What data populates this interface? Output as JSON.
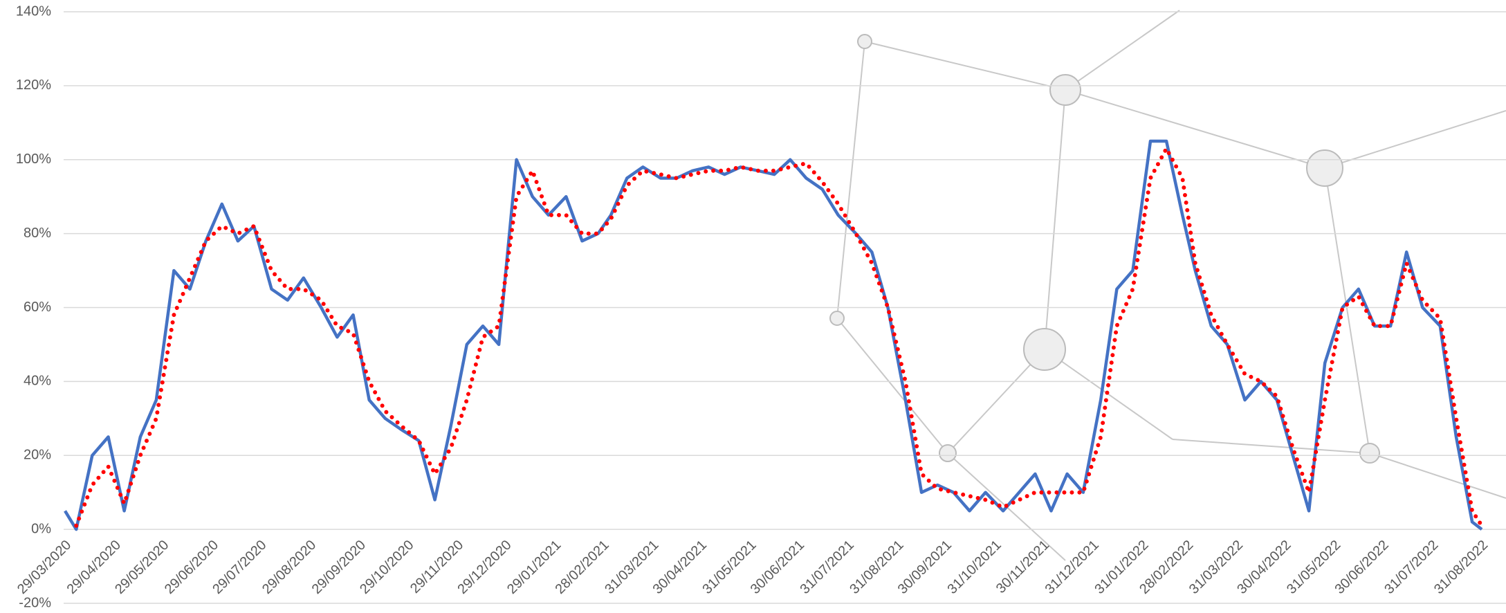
{
  "chart_data": {
    "type": "line",
    "x": [
      "29/03/2020",
      "05/04/2020",
      "15/04/2020",
      "25/04/2020",
      "05/05/2020",
      "15/05/2020",
      "25/05/2020",
      "05/06/2020",
      "15/06/2020",
      "25/06/2020",
      "05/07/2020",
      "15/07/2020",
      "25/07/2020",
      "05/08/2020",
      "15/08/2020",
      "25/08/2020",
      "05/09/2020",
      "15/09/2020",
      "25/09/2020",
      "05/10/2020",
      "15/10/2020",
      "25/10/2020",
      "05/11/2020",
      "15/11/2020",
      "25/11/2020",
      "05/12/2020",
      "15/12/2020",
      "25/12/2020",
      "05/01/2021",
      "15/01/2021",
      "25/01/2021",
      "05/02/2021",
      "15/02/2021",
      "25/02/2021",
      "05/03/2021",
      "15/03/2021",
      "25/03/2021",
      "05/04/2021",
      "15/04/2021",
      "25/04/2021",
      "05/05/2021",
      "15/05/2021",
      "25/05/2021",
      "05/06/2021",
      "15/06/2021",
      "25/06/2021",
      "05/07/2021",
      "15/07/2021",
      "25/07/2021",
      "05/08/2021",
      "15/08/2021",
      "25/08/2021",
      "05/09/2021",
      "15/09/2021",
      "25/09/2021",
      "05/10/2021",
      "15/10/2021",
      "25/10/2021",
      "05/11/2021",
      "15/11/2021",
      "25/11/2021",
      "05/12/2021",
      "15/12/2021",
      "25/12/2021",
      "05/01/2022",
      "15/01/2022",
      "25/01/2022",
      "05/02/2022",
      "15/02/2022",
      "25/02/2022",
      "05/03/2022",
      "15/03/2022",
      "25/03/2022",
      "05/04/2022",
      "15/04/2022",
      "25/04/2022",
      "05/05/2022",
      "15/05/2022",
      "25/05/2022",
      "05/06/2022",
      "15/06/2022",
      "25/06/2022",
      "05/07/2022",
      "15/07/2022",
      "25/07/2022",
      "05/08/2022",
      "15/08/2022",
      "25/08/2022",
      "31/08/2022"
    ],
    "series": [
      {
        "color": "#4472c4",
        "style": "solid",
        "values": [
          5,
          0,
          20,
          25,
          5,
          25,
          35,
          70,
          65,
          78,
          88,
          78,
          82,
          65,
          62,
          68,
          60,
          52,
          58,
          35,
          30,
          27,
          24,
          8,
          28,
          50,
          55,
          50,
          100,
          90,
          85,
          90,
          78,
          80,
          85,
          95,
          98,
          95,
          95,
          97,
          98,
          96,
          98,
          97,
          96,
          100,
          95,
          92,
          85,
          80,
          75,
          60,
          35,
          10,
          12,
          10,
          5,
          10,
          5,
          10,
          15,
          5,
          15,
          10,
          35,
          65,
          70,
          105,
          105,
          85,
          70,
          55,
          50,
          35,
          40,
          35,
          20,
          5,
          45,
          60,
          65,
          55,
          55,
          75,
          60,
          55,
          25,
          2,
          0
        ]
      },
      {
        "color": "#ff0000",
        "style": "dotted",
        "values": [
          null,
          1,
          12,
          17,
          7,
          20,
          30,
          58,
          68,
          78,
          82,
          80,
          82,
          70,
          65,
          65,
          62,
          55,
          53,
          40,
          32,
          28,
          24,
          15,
          22,
          35,
          52,
          55,
          90,
          97,
          85,
          85,
          80,
          80,
          84,
          93,
          97,
          96,
          95,
          96,
          97,
          97,
          98,
          97,
          97,
          98,
          99,
          94,
          88,
          80,
          72,
          60,
          40,
          15,
          11,
          10,
          9,
          8,
          6,
          8,
          10,
          10,
          10,
          10,
          25,
          55,
          65,
          95,
          103,
          95,
          72,
          58,
          50,
          42,
          40,
          36,
          22,
          10,
          35,
          60,
          63,
          55,
          55,
          72,
          62,
          57,
          30,
          5,
          1
        ]
      }
    ],
    "xlim": [
      "29/03/2020",
      "31/08/2022"
    ],
    "xticks": [
      "29/03/2020",
      "29/04/2020",
      "29/05/2020",
      "29/06/2020",
      "29/07/2020",
      "29/08/2020",
      "29/09/2020",
      "29/10/2020",
      "29/11/2020",
      "29/12/2020",
      "29/01/2021",
      "28/02/2021",
      "31/03/2021",
      "30/04/2021",
      "31/05/2021",
      "30/06/2021",
      "31/07/2021",
      "31/08/2021",
      "30/09/2021",
      "31/10/2021",
      "30/11/2021",
      "31/12/2021",
      "31/01/2022",
      "28/02/2022",
      "31/03/2022",
      "30/04/2022",
      "31/05/2022",
      "30/06/2022",
      "31/07/2022",
      "31/08/2022"
    ],
    "ylim": [
      -20,
      140
    ],
    "yticks": [
      {
        "value": -20,
        "label": "-20%"
      },
      {
        "value": 0,
        "label": "0%"
      },
      {
        "value": 20,
        "label": "20%"
      },
      {
        "value": 40,
        "label": "40%"
      },
      {
        "value": 60,
        "label": "60%"
      },
      {
        "value": 80,
        "label": "80%"
      },
      {
        "value": 100,
        "label": "100%"
      },
      {
        "value": 120,
        "label": "120%"
      },
      {
        "value": 140,
        "label": "140%"
      }
    ],
    "grid": true
  }
}
